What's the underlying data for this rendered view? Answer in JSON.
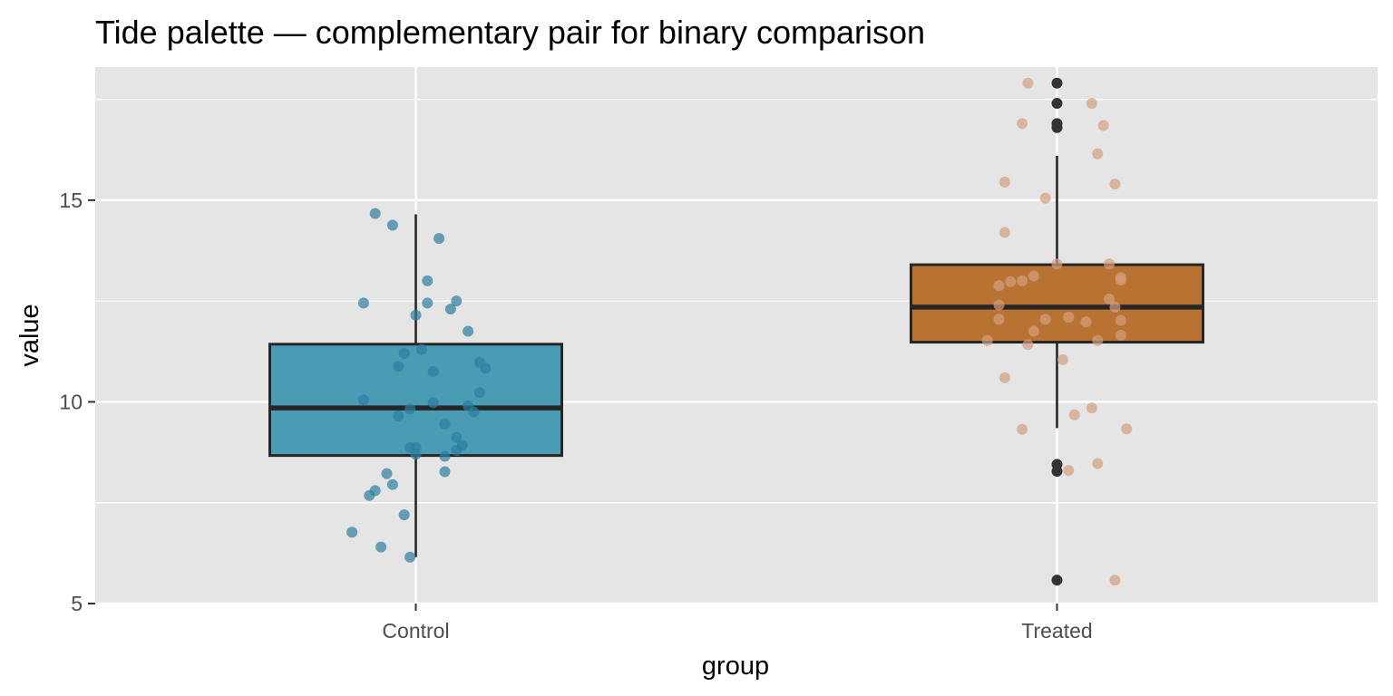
{
  "chart_data": {
    "type": "boxplot",
    "title": "Tide palette — complementary pair for binary comparison",
    "xlabel": "group",
    "ylabel": "value",
    "ylim": [
      5,
      18.3
    ],
    "yticks": [
      5,
      10,
      15
    ],
    "categories": [
      "Control",
      "Treated"
    ],
    "colors": {
      "panel": "#e5e5e5",
      "grid": "#ffffff",
      "box_border": "#262626",
      "outlier": "#333333",
      "tick": "#333333"
    },
    "series": [
      {
        "name": "Control",
        "fill": "#4a9bb4",
        "point_color": "#2b7fa0",
        "box": {
          "q1": 8.67,
          "median": 9.85,
          "q3": 11.43,
          "whisker_low": 6.15,
          "whisker_high": 14.65
        },
        "outliers": [],
        "jitter": [
          [
            -0.07,
            14.67
          ],
          [
            -0.04,
            14.38
          ],
          [
            0.04,
            14.05
          ],
          [
            0.02,
            13.0
          ],
          [
            -0.09,
            12.45
          ],
          [
            0.02,
            12.45
          ],
          [
            0.07,
            12.5
          ],
          [
            0.06,
            12.3
          ],
          [
            0.0,
            12.15
          ],
          [
            0.09,
            11.75
          ],
          [
            0.01,
            11.3
          ],
          [
            -0.02,
            11.2
          ],
          [
            0.11,
            10.98
          ],
          [
            -0.03,
            10.88
          ],
          [
            0.12,
            10.83
          ],
          [
            0.03,
            10.75
          ],
          [
            0.11,
            10.23
          ],
          [
            -0.09,
            10.05
          ],
          [
            0.03,
            9.98
          ],
          [
            0.09,
            9.9
          ],
          [
            -0.01,
            9.82
          ],
          [
            0.1,
            9.75
          ],
          [
            -0.03,
            9.65
          ],
          [
            0.05,
            9.45
          ],
          [
            0.07,
            9.12
          ],
          [
            0.08,
            8.92
          ],
          [
            0.0,
            8.87
          ],
          [
            -0.01,
            8.87
          ],
          [
            0.0,
            8.7
          ],
          [
            0.07,
            8.8
          ],
          [
            0.05,
            8.65
          ],
          [
            0.05,
            8.27
          ],
          [
            -0.05,
            8.22
          ],
          [
            -0.04,
            7.95
          ],
          [
            -0.07,
            7.8
          ],
          [
            -0.08,
            7.68
          ],
          [
            -0.02,
            7.2
          ],
          [
            -0.11,
            6.77
          ],
          [
            -0.06,
            6.4
          ],
          [
            -0.01,
            6.15
          ]
        ]
      },
      {
        "name": "Treated",
        "fill": "#b87333",
        "point_color": "#d4a07e",
        "box": {
          "q1": 11.48,
          "median": 12.35,
          "q3": 13.4,
          "whisker_low": 9.35,
          "whisker_high": 16.1
        },
        "outliers": [
          17.9,
          17.4,
          16.9,
          16.8,
          8.45,
          8.28,
          5.58
        ],
        "jitter": [
          [
            -0.05,
            17.9
          ],
          [
            0.06,
            17.4
          ],
          [
            -0.06,
            16.9
          ],
          [
            0.08,
            16.85
          ],
          [
            0.07,
            16.15
          ],
          [
            -0.09,
            15.45
          ],
          [
            0.1,
            15.4
          ],
          [
            -0.02,
            15.05
          ],
          [
            -0.09,
            14.2
          ],
          [
            0.0,
            13.42
          ],
          [
            0.09,
            13.42
          ],
          [
            -0.04,
            13.12
          ],
          [
            0.11,
            13.08
          ],
          [
            0.11,
            13.02
          ],
          [
            -0.06,
            13.0
          ],
          [
            -0.08,
            12.98
          ],
          [
            -0.1,
            12.88
          ],
          [
            0.09,
            12.55
          ],
          [
            -0.1,
            12.4
          ],
          [
            0.1,
            12.35
          ],
          [
            -0.1,
            12.05
          ],
          [
            0.02,
            12.1
          ],
          [
            -0.02,
            12.05
          ],
          [
            0.05,
            11.98
          ],
          [
            0.11,
            12.02
          ],
          [
            -0.04,
            11.75
          ],
          [
            0.11,
            11.65
          ],
          [
            0.07,
            11.52
          ],
          [
            -0.12,
            11.52
          ],
          [
            -0.05,
            11.42
          ],
          [
            0.01,
            11.05
          ],
          [
            -0.09,
            10.6
          ],
          [
            0.06,
            9.85
          ],
          [
            0.03,
            9.68
          ],
          [
            -0.06,
            9.32
          ],
          [
            0.12,
            9.33
          ],
          [
            0.07,
            8.47
          ],
          [
            0.02,
            8.3
          ],
          [
            0.1,
            5.58
          ]
        ]
      }
    ]
  }
}
